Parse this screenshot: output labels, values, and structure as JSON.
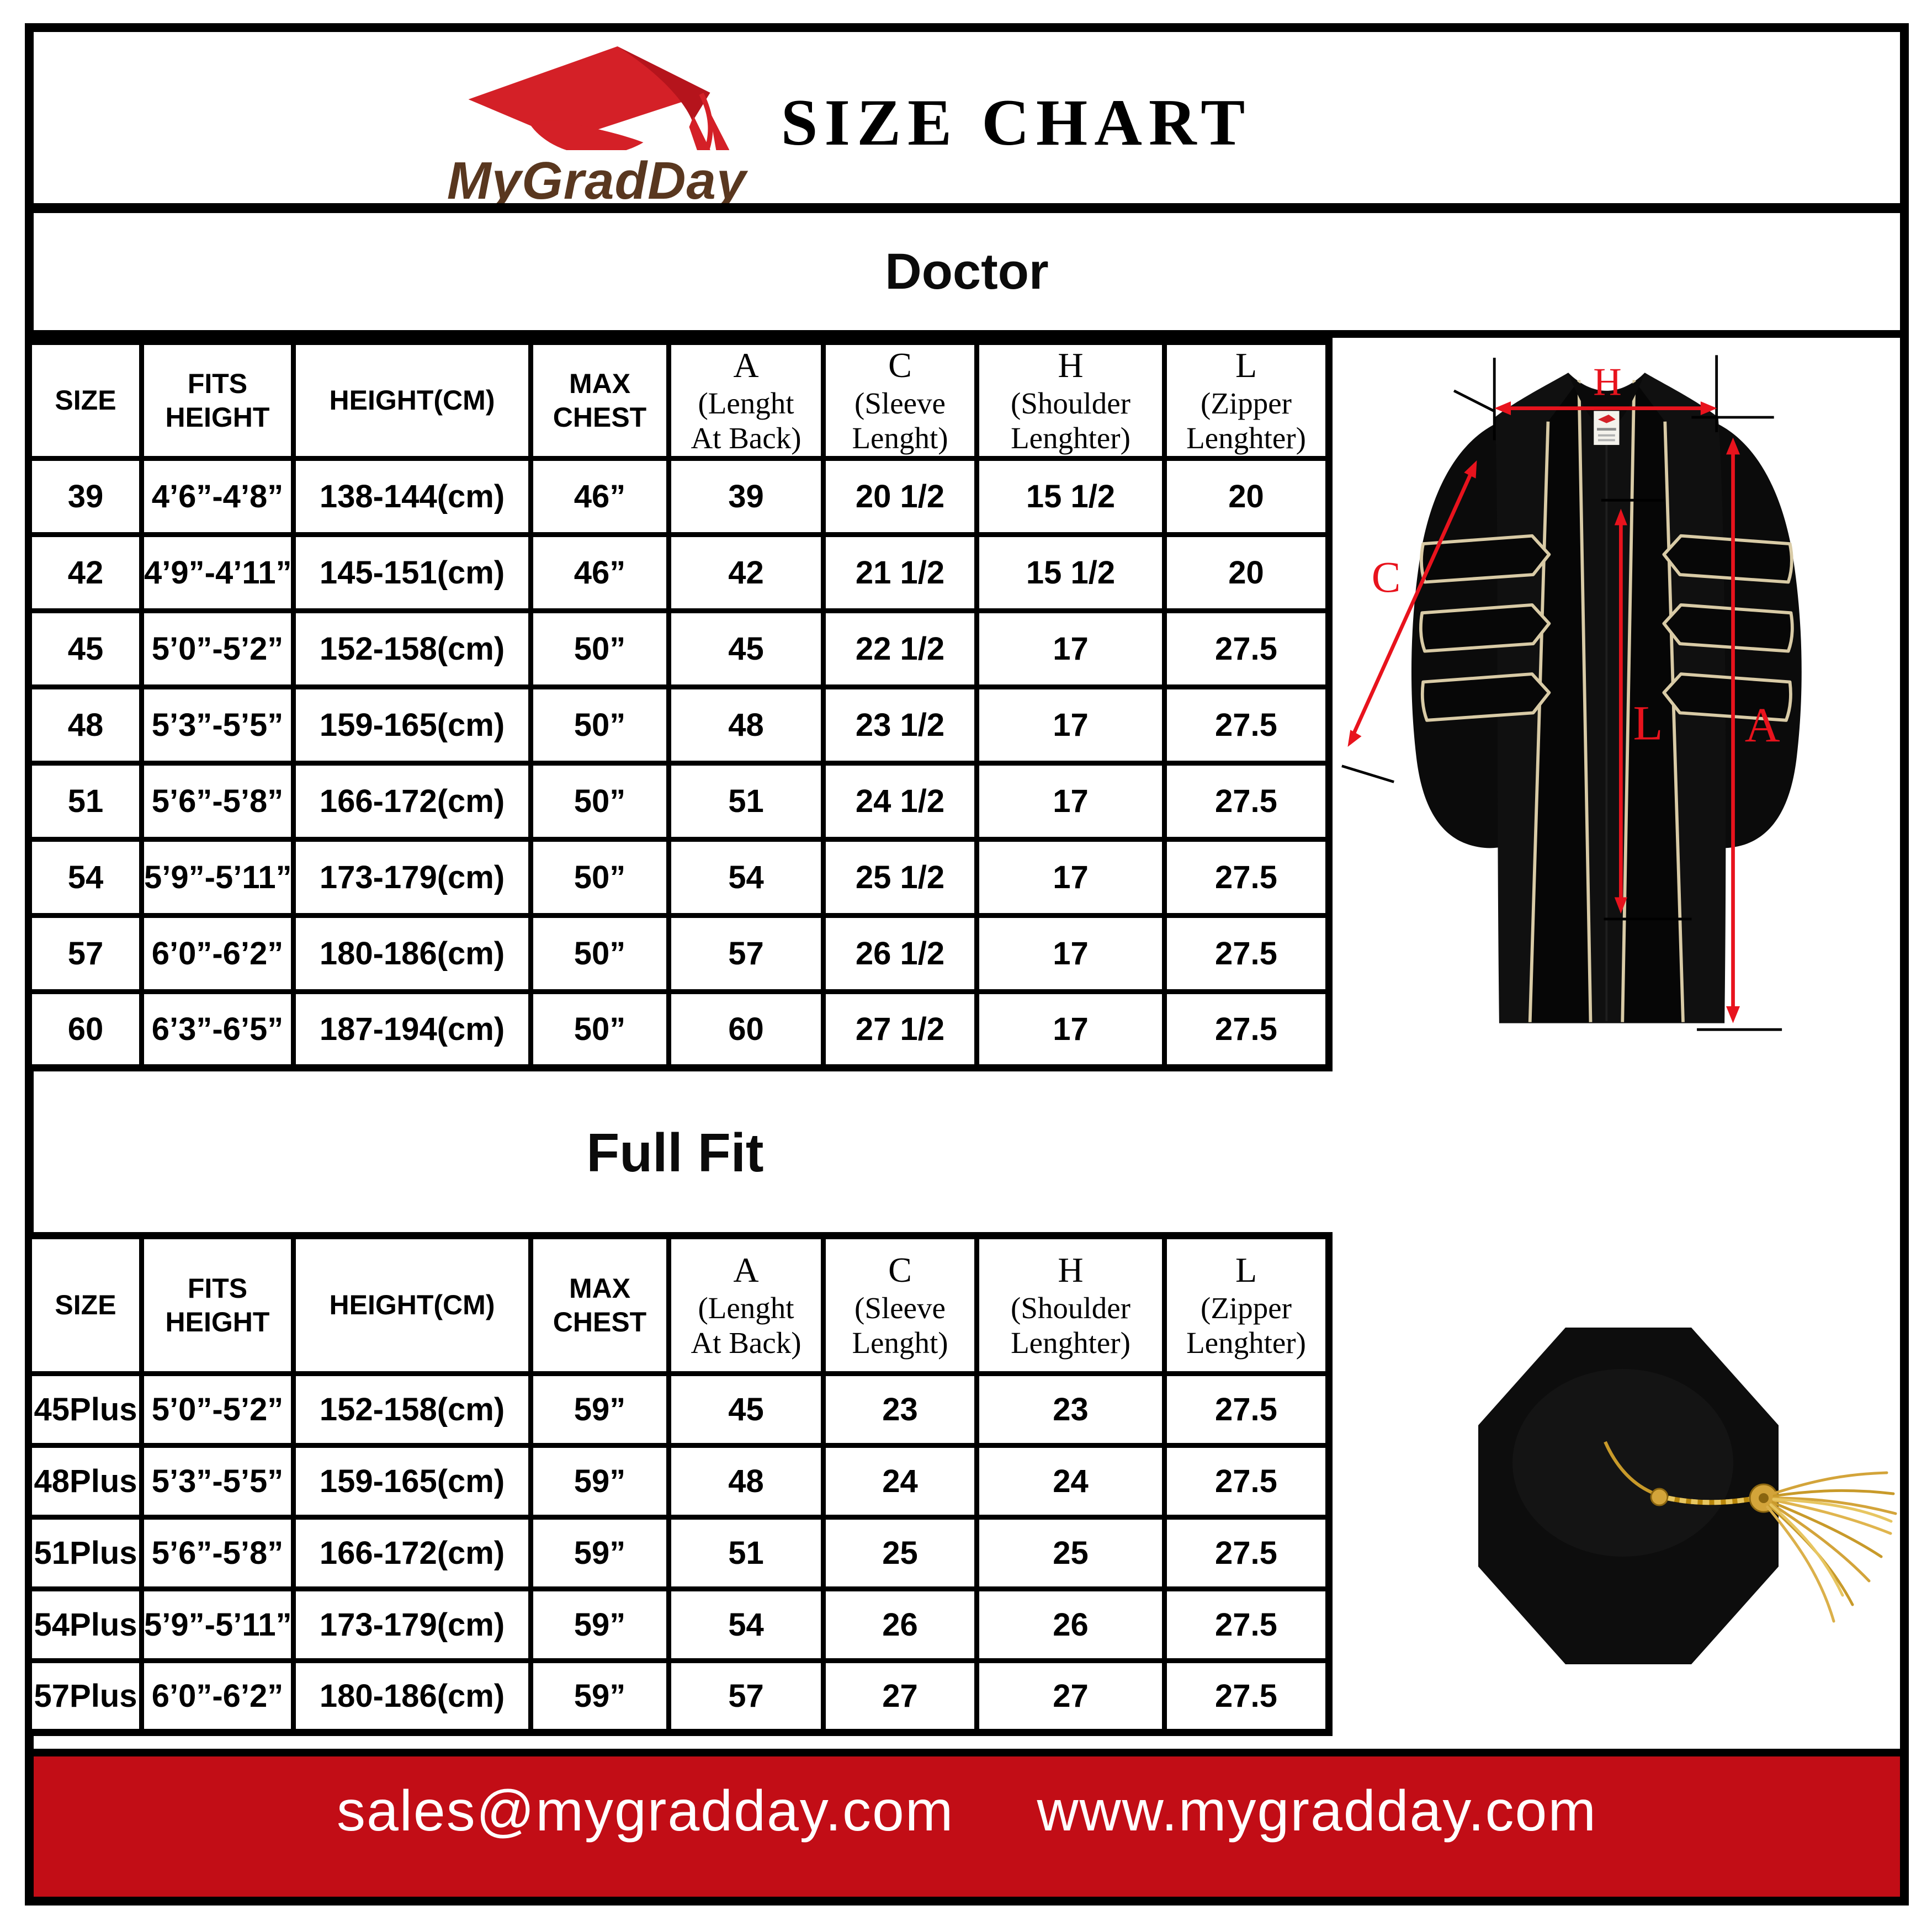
{
  "header": {
    "brand": "MyGradDay",
    "title": "SIZE CHART"
  },
  "doctor_section": {
    "title": "Doctor"
  },
  "fullfit_section": {
    "title": "Full Fit"
  },
  "columns": [
    {
      "id": "size",
      "style": "sans",
      "lines": [
        "SIZE"
      ]
    },
    {
      "id": "fits-height",
      "style": "sans",
      "lines": [
        "FITS",
        "HEIGHT"
      ]
    },
    {
      "id": "height-cm",
      "style": "sans",
      "lines": [
        "HEIGHT(CM)"
      ]
    },
    {
      "id": "max-chest",
      "style": "sans",
      "lines": [
        "MAX",
        "CHEST"
      ]
    },
    {
      "id": "a-length-at-back",
      "style": "serif",
      "lines": [
        "A",
        "(Lenght",
        "At Back)"
      ]
    },
    {
      "id": "c-sleeve-length",
      "style": "serif",
      "lines": [
        "C",
        "(Sleeve",
        "Lenght)"
      ]
    },
    {
      "id": "h-shoulder-length",
      "style": "serif",
      "lines": [
        "H",
        "(Shoulder",
        "Lenghter)"
      ]
    },
    {
      "id": "l-zipper-length",
      "style": "serif",
      "lines": [
        "L",
        "(Zipper",
        "Lenghter)"
      ]
    }
  ],
  "doctor_rows": [
    [
      "39",
      "4’6”-4’8”",
      "138-144(cm)",
      "46”",
      "39",
      "20 1/2",
      "15 1/2",
      "20"
    ],
    [
      "42",
      "4’9”-4’11”",
      "145-151(cm)",
      "46”",
      "42",
      "21 1/2",
      "15 1/2",
      "20"
    ],
    [
      "45",
      "5’0”-5’2”",
      "152-158(cm)",
      "50”",
      "45",
      "22 1/2",
      "17",
      "27.5"
    ],
    [
      "48",
      "5’3”-5’5”",
      "159-165(cm)",
      "50”",
      "48",
      "23 1/2",
      "17",
      "27.5"
    ],
    [
      "51",
      "5’6”-5’8”",
      "166-172(cm)",
      "50”",
      "51",
      "24 1/2",
      "17",
      "27.5"
    ],
    [
      "54",
      "5’9”-5’11”",
      "173-179(cm)",
      "50”",
      "54",
      "25 1/2",
      "17",
      "27.5"
    ],
    [
      "57",
      "6’0”-6’2”",
      "180-186(cm)",
      "50”",
      "57",
      "26 1/2",
      "17",
      "27.5"
    ],
    [
      "60",
      "6’3”-6’5”",
      "187-194(cm)",
      "50”",
      "60",
      "27 1/2",
      "17",
      "27.5"
    ]
  ],
  "fullfit_rows": [
    [
      "45Plus",
      "5’0”-5’2”",
      "152-158(cm)",
      "59”",
      "45",
      "23",
      "23",
      "27.5"
    ],
    [
      "48Plus",
      "5’3”-5’5”",
      "159-165(cm)",
      "59”",
      "48",
      "24",
      "24",
      "27.5"
    ],
    [
      "51Plus",
      "5’6”-5’8”",
      "166-172(cm)",
      "59”",
      "51",
      "25",
      "25",
      "27.5"
    ],
    [
      "54Plus",
      "5’9”-5’11”",
      "173-179(cm)",
      "59”",
      "54",
      "26",
      "26",
      "27.5"
    ],
    [
      "57Plus",
      "6’0”-6’2”",
      "180-186(cm)",
      "59”",
      "57",
      "27",
      "27",
      "27.5"
    ]
  ],
  "diagram": {
    "shoulder_label": "H",
    "sleeve_label": "C",
    "length_label": "L",
    "back_label": "A"
  },
  "footer": {
    "email": "sales@mygradday.com",
    "website": "www.mygradday.com"
  },
  "colors": {
    "accent_red": "#c20d16",
    "arrow_red": "#e8131d",
    "logo_red": "#d42027",
    "brand_brown": "#59371f",
    "piping_gold": "#d9cba6",
    "tassel_gold": "#d3a43a"
  }
}
